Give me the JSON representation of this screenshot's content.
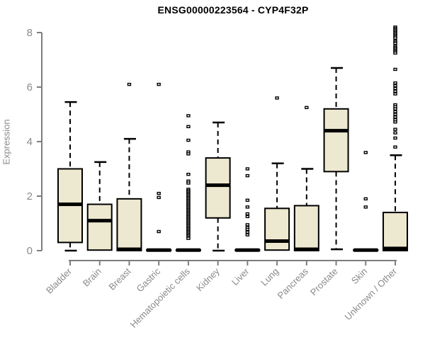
{
  "chart_data": {
    "type": "boxplot",
    "title": "ENSG00000223564 - CYP4F32P",
    "ylabel": "Expression",
    "xlabel": "",
    "ylim": [
      0,
      8.3
    ],
    "yticks": [
      0,
      2,
      4,
      6,
      8
    ],
    "grid": false,
    "legend": "none",
    "colors": {
      "box_fill": "#ede8d0",
      "box_stroke": "#000000",
      "axis": "#7d7d7d",
      "tick_text": "#8a8a8a",
      "title_text": "#000000"
    },
    "categories": [
      "Bladder",
      "Brain",
      "Breast",
      "Gastric",
      "Hematopoietic cells",
      "Kidney",
      "Liver",
      "Lung",
      "Pancreas",
      "Prostate",
      "Skin",
      "Unknown / Other"
    ],
    "series": [
      {
        "name": "Bladder",
        "low": 0,
        "q1": 0.3,
        "median": 1.7,
        "q3": 3.0,
        "high": 5.45,
        "outliers": []
      },
      {
        "name": "Brain",
        "low": 0,
        "q1": 0.02,
        "median": 1.1,
        "q3": 1.7,
        "high": 3.25,
        "outliers": []
      },
      {
        "name": "Breast",
        "low": 0,
        "q1": 0,
        "median": 0.05,
        "q3": 1.9,
        "high": 4.1,
        "outliers": [
          6.1
        ]
      },
      {
        "name": "Gastric",
        "low": 0,
        "q1": 0,
        "median": 0.02,
        "q3": 0.03,
        "high": 0.03,
        "outliers": [
          6.1,
          2.1,
          1.95,
          0.7
        ]
      },
      {
        "name": "Hematopoietic cells",
        "low": 0,
        "q1": 0,
        "median": 0.02,
        "q3": 0.03,
        "high": 0.03,
        "outliers": [
          4.95,
          4.55,
          4.05,
          3.62,
          3.55,
          2.8,
          2.55,
          2.48,
          2.25,
          2.2,
          2.15,
          2.1,
          2.05,
          2.0,
          1.95,
          1.9,
          1.85,
          1.8,
          1.75,
          1.7,
          1.65,
          1.6,
          1.55,
          1.5,
          1.45,
          1.4,
          1.35,
          1.3,
          1.25,
          1.2,
          1.15,
          1.1,
          1.05,
          1.0,
          0.95,
          0.9,
          0.85,
          0.8,
          0.75,
          0.7,
          0.65,
          0.6,
          0.55,
          0.5,
          0.45
        ]
      },
      {
        "name": "Kidney",
        "low": 0,
        "q1": 1.2,
        "median": 2.4,
        "q3": 3.4,
        "high": 4.7,
        "outliers": []
      },
      {
        "name": "Liver",
        "low": 0,
        "q1": 0,
        "median": 0.02,
        "q3": 0.03,
        "high": 0.03,
        "outliers": [
          3.0,
          2.75,
          1.85,
          1.6,
          1.35,
          1.25,
          0.95,
          0.85,
          0.78,
          0.68,
          0.58
        ]
      },
      {
        "name": "Lung",
        "low": 0,
        "q1": 0.02,
        "median": 0.35,
        "q3": 1.55,
        "high": 3.2,
        "outliers": [
          5.6
        ]
      },
      {
        "name": "Pancreas",
        "low": 0,
        "q1": 0,
        "median": 0.05,
        "q3": 1.65,
        "high": 3.0,
        "outliers": [
          5.25
        ]
      },
      {
        "name": "Prostate",
        "low": 0.05,
        "q1": 2.9,
        "median": 4.4,
        "q3": 5.2,
        "high": 6.7,
        "outliers": []
      },
      {
        "name": "Skin",
        "low": 0,
        "q1": 0,
        "median": 0.02,
        "q3": 0.03,
        "high": 0.03,
        "outliers": [
          3.6,
          1.9,
          1.6
        ]
      },
      {
        "name": "Unknown / Other",
        "low": 0,
        "q1": 0,
        "median": 0.08,
        "q3": 1.4,
        "high": 3.5,
        "outliers": [
          8.2,
          8.15,
          8.1,
          8.05,
          8.0,
          7.95,
          7.9,
          7.85,
          7.8,
          7.7,
          7.65,
          7.6,
          7.5,
          7.45,
          7.4,
          7.35,
          7.3,
          7.25,
          6.65,
          6.15,
          6.05,
          5.95,
          5.85,
          5.75,
          5.35,
          5.28,
          5.2,
          5.1,
          5.0,
          4.9,
          4.8,
          4.72,
          4.45,
          4.32,
          4.13,
          3.8
        ]
      }
    ]
  }
}
